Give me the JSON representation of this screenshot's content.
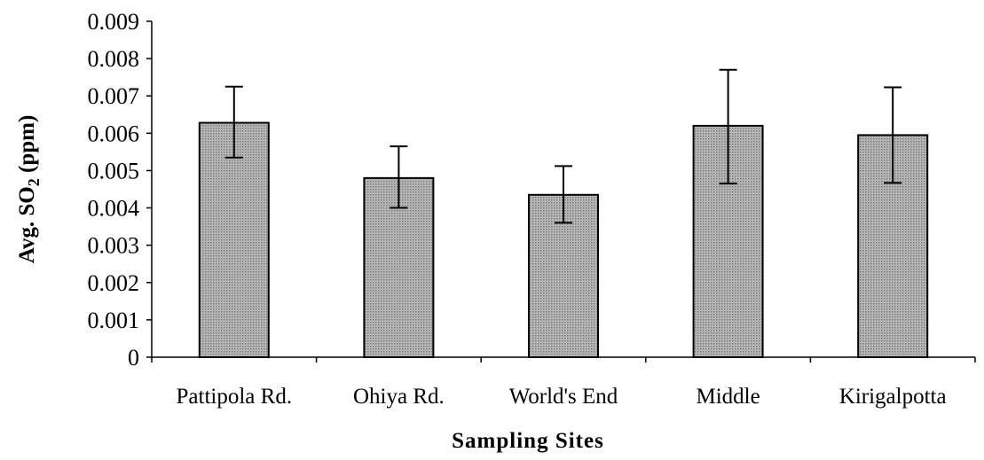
{
  "chart_data": {
    "type": "bar",
    "title": "",
    "xlabel": "Sampling Sites",
    "ylabel": {
      "prefix": "Avg. SO",
      "subscript": "2",
      "suffix": " (ppm)"
    },
    "categories": [
      "Pattipola Rd.",
      "Ohiya Rd.",
      "World's End",
      "Middle",
      "Kirigalpotta"
    ],
    "values": [
      0.00628,
      0.0048,
      0.00435,
      0.0062,
      0.00595
    ],
    "error_lower": [
      0.00535,
      0.004,
      0.0036,
      0.00465,
      0.00467
    ],
    "error_upper": [
      0.00725,
      0.00565,
      0.00512,
      0.0077,
      0.00723
    ],
    "ylim": [
      0,
      0.009
    ],
    "yticks": [
      "0",
      "0.001",
      "0.002",
      "0.003",
      "0.004",
      "0.005",
      "0.006",
      "0.007",
      "0.008",
      "0.009"
    ],
    "grid": false,
    "legend": "none",
    "bar_color": "#b8b8b8",
    "bar_pattern_dot": "#7a7a7a"
  }
}
